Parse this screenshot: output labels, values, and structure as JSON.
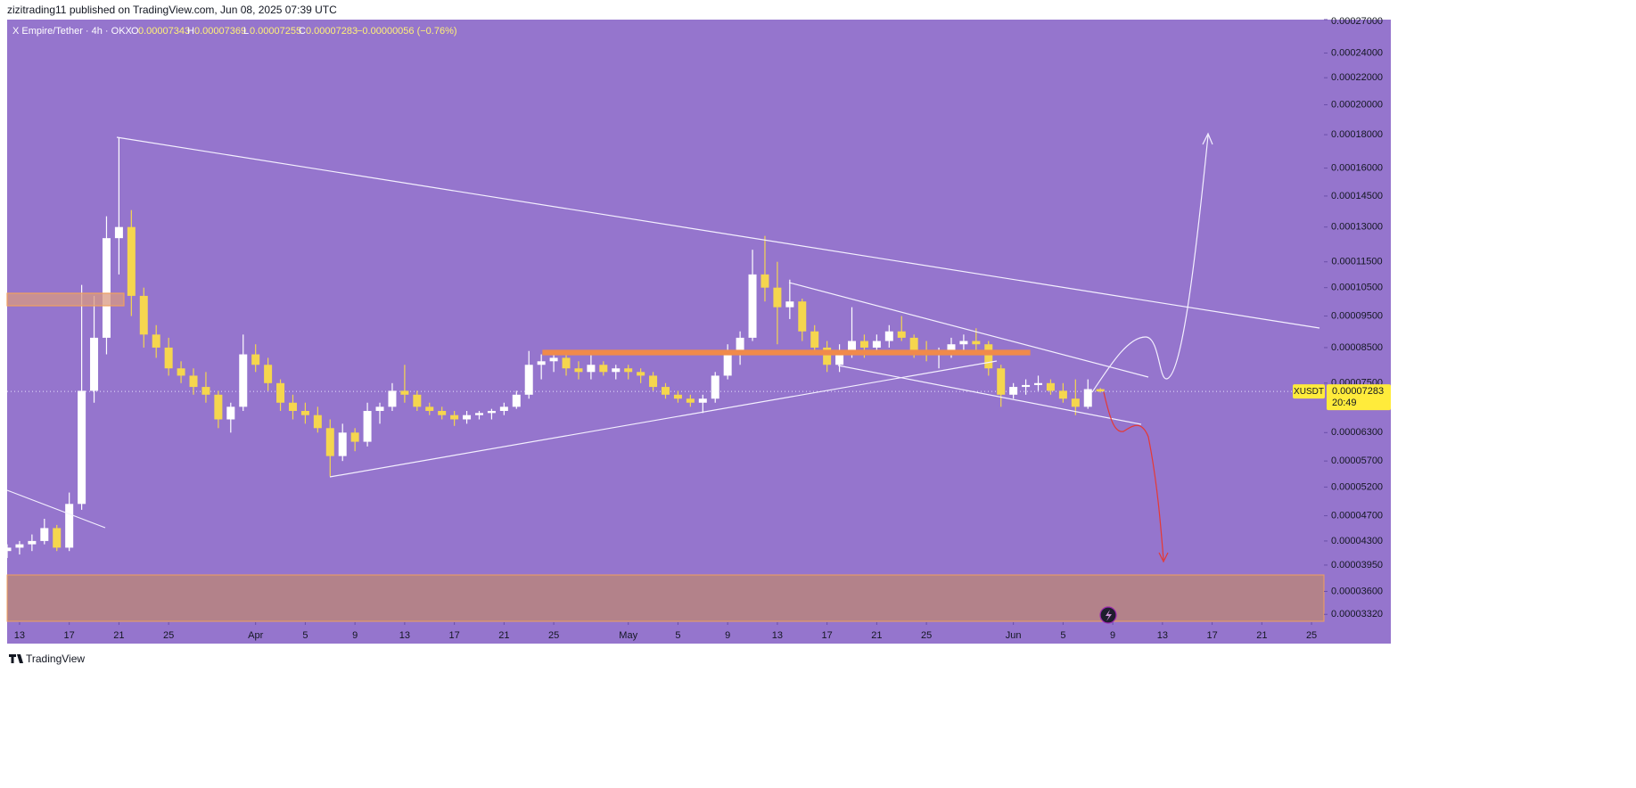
{
  "header": {
    "published": "zizitrading11 published on TradingView.com, Jun 08, 2025 07:39 UTC"
  },
  "legend": {
    "symbol": "X Empire/Tether · 4h · OKX",
    "o": "O",
    "open": "0.00007343",
    "h": "H",
    "high": "0.00007369",
    "l": "L",
    "low": "0.00007255",
    "c": "C",
    "close": "0.00007283",
    "change": "−0.00000056 (−0.76%)"
  },
  "footer": {
    "brand": "TradingView"
  },
  "chart_data": {
    "type": "candlestick",
    "log_scale": true,
    "up_color": "#ffffff",
    "down_color": "#f5d64e",
    "xlim": [
      "03-12",
      "06-26"
    ],
    "xticks": [
      {
        "value": "03-13",
        "label": "13"
      },
      {
        "value": "03-17",
        "label": "17"
      },
      {
        "value": "03-21",
        "label": "21"
      },
      {
        "value": "03-25",
        "label": "25"
      },
      {
        "value": "04-01",
        "label": "Apr"
      },
      {
        "value": "04-05",
        "label": "5"
      },
      {
        "value": "04-09",
        "label": "9"
      },
      {
        "value": "04-13",
        "label": "13"
      },
      {
        "value": "04-17",
        "label": "17"
      },
      {
        "value": "04-21",
        "label": "21"
      },
      {
        "value": "04-25",
        "label": "25"
      },
      {
        "value": "05-01",
        "label": "May"
      },
      {
        "value": "05-05",
        "label": "5"
      },
      {
        "value": "05-09",
        "label": "9"
      },
      {
        "value": "05-13",
        "label": "13"
      },
      {
        "value": "05-17",
        "label": "17"
      },
      {
        "value": "05-21",
        "label": "21"
      },
      {
        "value": "05-25",
        "label": "25"
      },
      {
        "value": "06-01",
        "label": "Jun"
      },
      {
        "value": "06-05",
        "label": "5"
      },
      {
        "value": "06-09",
        "label": "9"
      },
      {
        "value": "06-13",
        "label": "13"
      },
      {
        "value": "06-17",
        "label": "17"
      },
      {
        "value": "06-21",
        "label": "21"
      },
      {
        "value": "06-25",
        "label": "25"
      }
    ],
    "ylim": [
      3.24e-05,
      0.00027
    ],
    "yticks": [
      {
        "value": 0.00027,
        "label": "0.00027000"
      },
      {
        "value": 0.00024,
        "label": "0.00024000"
      },
      {
        "value": 0.00022,
        "label": "0.00022000"
      },
      {
        "value": 0.0002,
        "label": "0.00020000"
      },
      {
        "value": 0.00018,
        "label": "0.00018000"
      },
      {
        "value": 0.00016,
        "label": "0.00016000"
      },
      {
        "value": 0.000145,
        "label": "0.00014500"
      },
      {
        "value": 0.00013,
        "label": "0.00013000"
      },
      {
        "value": 0.000115,
        "label": "0.00011500"
      },
      {
        "value": 0.000105,
        "label": "0.00010500"
      },
      {
        "value": 9.5e-05,
        "label": "0.00009500"
      },
      {
        "value": 8.5e-05,
        "label": "0.00008500"
      },
      {
        "value": 7.5e-05,
        "label": "0.00007500"
      },
      {
        "value": 6.3e-05,
        "label": "0.00006300"
      },
      {
        "value": 5.7e-05,
        "label": "0.00005700"
      },
      {
        "value": 5.2e-05,
        "label": "0.00005200"
      },
      {
        "value": 4.7e-05,
        "label": "0.00004700"
      },
      {
        "value": 4.3e-05,
        "label": "0.00004300"
      },
      {
        "value": 3.95e-05,
        "label": "0.00003950"
      },
      {
        "value": 3.6e-05,
        "label": "0.00003600"
      },
      {
        "value": 3.32e-05,
        "label": "0.00003320"
      }
    ],
    "x": [
      "03-12",
      "03-13",
      "03-14",
      "03-15",
      "03-16",
      "03-17",
      "03-18",
      "03-19",
      "03-20",
      "03-21",
      "03-22",
      "03-23",
      "03-24",
      "03-25",
      "03-26",
      "03-27",
      "03-28",
      "03-29",
      "03-30",
      "03-31",
      "04-01",
      "04-02",
      "04-03",
      "04-04",
      "04-05",
      "04-06",
      "04-07",
      "04-08",
      "04-09",
      "04-10",
      "04-11",
      "04-12",
      "04-13",
      "04-14",
      "04-15",
      "04-16",
      "04-17",
      "04-18",
      "04-19",
      "04-20",
      "04-21",
      "04-22",
      "04-23",
      "04-24",
      "04-25",
      "04-26",
      "04-27",
      "04-28",
      "04-29",
      "04-30",
      "05-01",
      "05-02",
      "05-03",
      "05-04",
      "05-05",
      "05-06",
      "05-07",
      "05-08",
      "05-09",
      "05-10",
      "05-11",
      "05-12",
      "05-13",
      "05-14",
      "05-15",
      "05-16",
      "05-17",
      "05-18",
      "05-19",
      "05-20",
      "05-21",
      "05-22",
      "05-23",
      "05-24",
      "05-25",
      "05-26",
      "05-27",
      "05-28",
      "05-29",
      "05-30",
      "05-31",
      "06-01",
      "06-02",
      "06-03",
      "06-04",
      "06-05",
      "06-06",
      "06-07",
      "06-08"
    ],
    "open": [
      4.15e-05,
      4.2e-05,
      4.25e-05,
      4.3e-05,
      4.5e-05,
      4.2e-05,
      4.9e-05,
      7.3e-05,
      8.8e-05,
      0.000125,
      0.00013,
      0.000102,
      8.9e-05,
      8.5e-05,
      7.9e-05,
      7.7e-05,
      7.4e-05,
      7.2e-05,
      6.6e-05,
      6.9e-05,
      8.3e-05,
      8e-05,
      7.5e-05,
      7e-05,
      6.8e-05,
      6.7e-05,
      6.4e-05,
      5.8e-05,
      6.3e-05,
      6.1e-05,
      6.8e-05,
      6.9e-05,
      7.3e-05,
      7.2e-05,
      6.9e-05,
      6.8e-05,
      6.7e-05,
      6.6e-05,
      6.7e-05,
      6.75e-05,
      6.8e-05,
      6.9e-05,
      7.2e-05,
      8e-05,
      8.1e-05,
      8.2e-05,
      7.9e-05,
      7.8e-05,
      8e-05,
      7.8e-05,
      7.9e-05,
      7.8e-05,
      7.7e-05,
      7.4e-05,
      7.2e-05,
      7.1e-05,
      7e-05,
      7.1e-05,
      7.7e-05,
      8.4e-05,
      8.8e-05,
      0.00011,
      0.000105,
      9.8e-05,
      0.0001,
      9e-05,
      8.5e-05,
      8e-05,
      8.4e-05,
      8.7e-05,
      8.5e-05,
      8.7e-05,
      9e-05,
      8.8e-05,
      8.4e-05,
      8.3e-05,
      8.4e-05,
      8.6e-05,
      8.7e-05,
      8.6e-05,
      7.9e-05,
      7.2e-05,
      7.4e-05,
      7.45e-05,
      7.5e-05,
      7.3e-05,
      7.1e-05,
      6.9e-05,
      7.343e-05
    ],
    "high": [
      4.25e-05,
      4.3e-05,
      4.4e-05,
      4.65e-05,
      4.55e-05,
      5.1e-05,
      0.000106,
      0.000102,
      0.000135,
      0.000178,
      0.000138,
      0.000105,
      9.2e-05,
      8.8e-05,
      8.1e-05,
      7.9e-05,
      7.8e-05,
      7.3e-05,
      7e-05,
      8.9e-05,
      8.6e-05,
      8.2e-05,
      7.6e-05,
      7.2e-05,
      7e-05,
      6.9e-05,
      6.6e-05,
      6.5e-05,
      6.4e-05,
      7e-05,
      7e-05,
      7.5e-05,
      8e-05,
      7.3e-05,
      7e-05,
      6.9e-05,
      6.8e-05,
      6.8e-05,
      6.8e-05,
      6.85e-05,
      7e-05,
      7.3e-05,
      8.4e-05,
      8.3e-05,
      8.4e-05,
      8.4e-05,
      8.1e-05,
      8.4e-05,
      8.1e-05,
      8e-05,
      8e-05,
      7.9e-05,
      7.8e-05,
      7.5e-05,
      7.3e-05,
      7.2e-05,
      7.2e-05,
      7.8e-05,
      8.6e-05,
      9e-05,
      0.00012,
      0.000126,
      0.000115,
      0.000108,
      0.000101,
      9.2e-05,
      8.7e-05,
      8.6e-05,
      9.8e-05,
      8.9e-05,
      8.9e-05,
      9.2e-05,
      9.5e-05,
      8.9e-05,
      8.7e-05,
      8.5e-05,
      8.8e-05,
      8.9e-05,
      9.1e-05,
      8.7e-05,
      8e-05,
      7.5e-05,
      7.6e-05,
      7.7e-05,
      7.6e-05,
      7.5e-05,
      7.6e-05,
      7.6e-05,
      7.369e-05
    ],
    "low": [
      4.05e-05,
      4.1e-05,
      4.15e-05,
      4.25e-05,
      4.15e-05,
      4.15e-05,
      4.8e-05,
      7e-05,
      8.3e-05,
      0.00011,
      9.5e-05,
      8.5e-05,
      8.2e-05,
      7.7e-05,
      7.5e-05,
      7.2e-05,
      7e-05,
      6.4e-05,
      6.3e-05,
      6.8e-05,
      7.8e-05,
      7.3e-05,
      6.8e-05,
      6.6e-05,
      6.5e-05,
      6.3e-05,
      5.4e-05,
      5.7e-05,
      5.9e-05,
      6e-05,
      6.5e-05,
      6.8e-05,
      7e-05,
      6.8e-05,
      6.7e-05,
      6.6e-05,
      6.45e-05,
      6.5e-05,
      6.6e-05,
      6.6e-05,
      6.7e-05,
      6.85e-05,
      7.1e-05,
      7.6e-05,
      7.8e-05,
      7.7e-05,
      7.6e-05,
      7.6e-05,
      7.7e-05,
      7.6e-05,
      7.6e-05,
      7.5e-05,
      7.3e-05,
      7.1e-05,
      7e-05,
      6.9e-05,
      6.75e-05,
      7e-05,
      7.6e-05,
      8e-05,
      8.7e-05,
      0.0001,
      8.6e-05,
      9.4e-05,
      8.7e-05,
      8.3e-05,
      7.8e-05,
      7.8e-05,
      8.2e-05,
      8.2e-05,
      8.3e-05,
      8.5e-05,
      8.7e-05,
      8.2e-05,
      8.1e-05,
      7.9e-05,
      8.2e-05,
      8.3e-05,
      8.4e-05,
      7.7e-05,
      6.9e-05,
      7.1e-05,
      7.2e-05,
      7.3e-05,
      7.2e-05,
      7e-05,
      6.7e-05,
      6.85e-05,
      7.255e-05
    ],
    "close": [
      4.2e-05,
      4.25e-05,
      4.3e-05,
      4.5e-05,
      4.2e-05,
      4.9e-05,
      7.3e-05,
      8.8e-05,
      0.000125,
      0.00013,
      0.000102,
      8.9e-05,
      8.5e-05,
      7.9e-05,
      7.7e-05,
      7.4e-05,
      7.2e-05,
      6.6e-05,
      6.9e-05,
      8.3e-05,
      8e-05,
      7.5e-05,
      7e-05,
      6.8e-05,
      6.7e-05,
      6.4e-05,
      5.8e-05,
      6.3e-05,
      6.1e-05,
      6.8e-05,
      6.9e-05,
      7.3e-05,
      7.2e-05,
      6.9e-05,
      6.8e-05,
      6.7e-05,
      6.6e-05,
      6.7e-05,
      6.75e-05,
      6.8e-05,
      6.9e-05,
      7.2e-05,
      8e-05,
      8.1e-05,
      8.2e-05,
      7.9e-05,
      7.8e-05,
      8e-05,
      7.8e-05,
      7.9e-05,
      7.8e-05,
      7.7e-05,
      7.4e-05,
      7.2e-05,
      7.1e-05,
      7e-05,
      7.1e-05,
      7.7e-05,
      8.4e-05,
      8.8e-05,
      0.00011,
      0.000105,
      9.8e-05,
      0.0001,
      9e-05,
      8.5e-05,
      8e-05,
      8.4e-05,
      8.7e-05,
      8.5e-05,
      8.7e-05,
      9e-05,
      8.8e-05,
      8.4e-05,
      8.3e-05,
      8.4e-05,
      8.6e-05,
      8.7e-05,
      8.6e-05,
      7.9e-05,
      7.2e-05,
      7.4e-05,
      7.45e-05,
      7.5e-05,
      7.3e-05,
      7.1e-05,
      6.9e-05,
      7.343e-05,
      7.283e-05
    ],
    "price_tag": {
      "symbol": "XUSDT",
      "price": 7.283e-05,
      "countdown": "20:49"
    }
  }
}
